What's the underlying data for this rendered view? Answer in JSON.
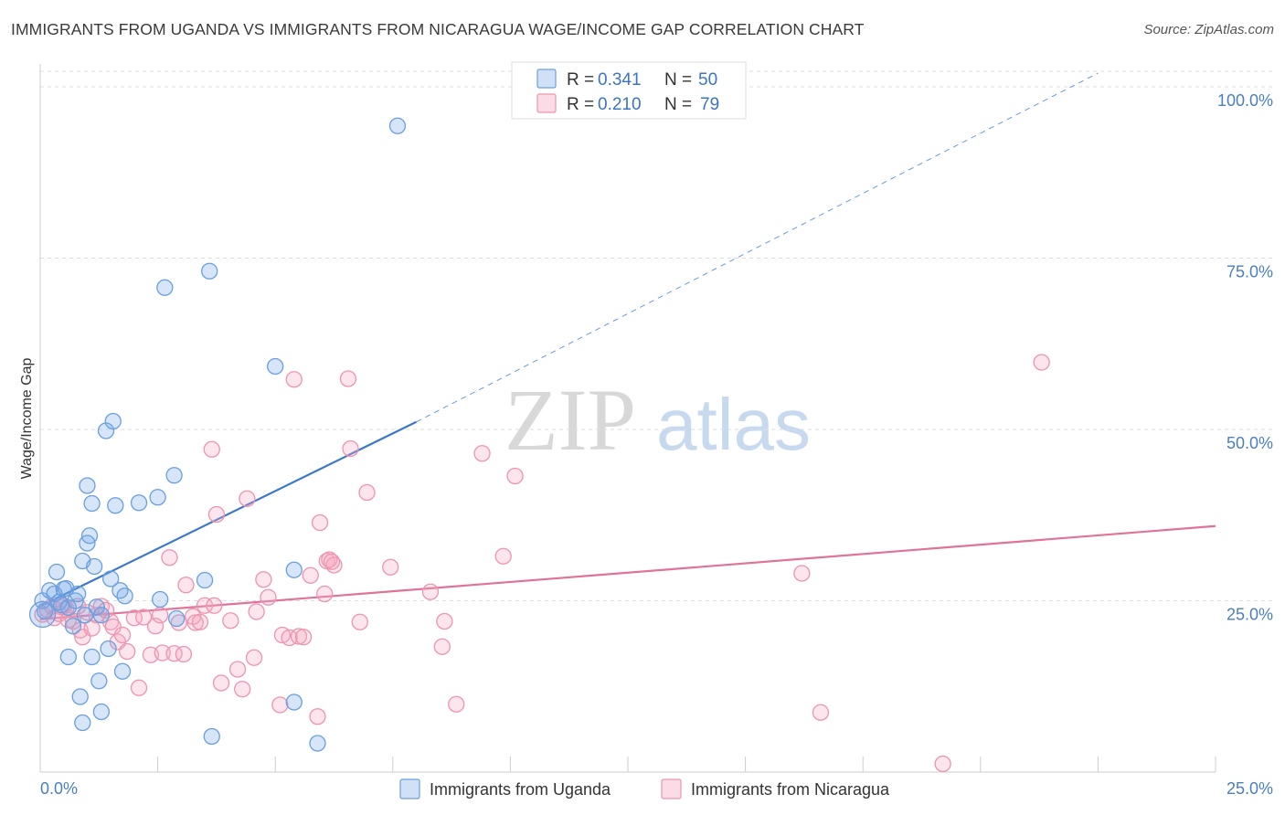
{
  "header": {
    "title": "IMMIGRANTS FROM UGANDA VS IMMIGRANTS FROM NICARAGUA WAGE/INCOME GAP CORRELATION CHART",
    "source": "Source: ZipAtlas.com"
  },
  "watermark": {
    "zip": "ZIP",
    "atlas": "atlas"
  },
  "colors": {
    "uganda": "#6a9fe0",
    "uganda_fill": "rgba(120,168,232,0.30)",
    "uganda_line": "#3a78cc",
    "nicaragua": "#ee94b0",
    "nicaragua_fill": "rgba(246,168,193,0.30)",
    "nicaragua_line": "#e0739a",
    "axis_text": "#4a7fc1",
    "grid": "#dddddd"
  },
  "chart_data": {
    "type": "scatter",
    "title": "IMMIGRANTS FROM UGANDA VS IMMIGRANTS FROM NICARAGUA WAGE/INCOME GAP CORRELATION CHART",
    "xlabel": "",
    "ylabel": "Wage/Income Gap",
    "xlim": [
      0,
      25
    ],
    "ylim": [
      0,
      102
    ],
    "x_tick_labels": [
      {
        "value": 0,
        "label": "0.0%"
      },
      {
        "value": 25,
        "label": "25.0%"
      }
    ],
    "x_minor_ticks": [
      0,
      2.5,
      5,
      7.5,
      10,
      12.5,
      15,
      17.5,
      20,
      22.5,
      25
    ],
    "y_ticks": [
      {
        "value": 25,
        "label": "25.0%"
      },
      {
        "value": 50,
        "label": "50.0%"
      },
      {
        "value": 75,
        "label": "75.0%"
      },
      {
        "value": 100,
        "label": "100.0%"
      }
    ],
    "legend": [
      {
        "series": "uganda",
        "r_label": "R =",
        "r_value": "0.341",
        "n_label": "N =",
        "n_value": "50"
      },
      {
        "series": "nicaragua",
        "r_label": "R =",
        "r_value": "0.210",
        "n_label": "N =",
        "n_value": "79"
      }
    ],
    "series": [
      {
        "name": "Immigrants from Uganda",
        "key": "uganda",
        "trend": {
          "x0": 0,
          "y0": 24.2,
          "x1": 8,
          "y1": 51.1,
          "dash_to_x": 22.5,
          "dash_to_y": 102
        },
        "points": [
          [
            0.05,
            25.0
          ],
          [
            0.1,
            23.5
          ],
          [
            0.2,
            26.5
          ],
          [
            0.3,
            26.0
          ],
          [
            0.35,
            29.2
          ],
          [
            0.4,
            24.8
          ],
          [
            0.45,
            24.4
          ],
          [
            0.5,
            26.7
          ],
          [
            0.55,
            26.8
          ],
          [
            0.6,
            24.0
          ],
          [
            0.7,
            21.3
          ],
          [
            0.6,
            16.8
          ],
          [
            0.9,
            30.8
          ],
          [
            0.75,
            25.0
          ],
          [
            0.8,
            26.0
          ],
          [
            0.95,
            22.9
          ],
          [
            0.85,
            11.0
          ],
          [
            0.9,
            7.2
          ],
          [
            1.0,
            41.8
          ],
          [
            1.05,
            34.5
          ],
          [
            1.1,
            39.2
          ],
          [
            1.15,
            30.0
          ],
          [
            1.1,
            16.8
          ],
          [
            1.2,
            24.1
          ],
          [
            1.25,
            13.3
          ],
          [
            1.3,
            8.8
          ],
          [
            1.4,
            49.8
          ],
          [
            1.45,
            18.0
          ],
          [
            1.5,
            28.2
          ],
          [
            1.55,
            51.2
          ],
          [
            1.6,
            38.9
          ],
          [
            1.7,
            26.5
          ],
          [
            1.75,
            14.7
          ],
          [
            1.8,
            25.7
          ],
          [
            1.0,
            33.4
          ],
          [
            2.1,
            39.3
          ],
          [
            2.5,
            40.1
          ],
          [
            2.55,
            25.2
          ],
          [
            2.65,
            70.7
          ],
          [
            2.85,
            43.3
          ],
          [
            2.9,
            22.4
          ],
          [
            3.5,
            28.0
          ],
          [
            3.6,
            73.1
          ],
          [
            3.65,
            5.2
          ],
          [
            5.0,
            59.2
          ],
          [
            5.4,
            29.5
          ],
          [
            5.4,
            10.2
          ],
          [
            5.9,
            4.2
          ],
          [
            7.6,
            94.3
          ],
          [
            1.3,
            22.9
          ]
        ]
      },
      {
        "name": "Immigrants from Nicaragua",
        "key": "nicaragua",
        "trend": {
          "x0": 0,
          "y0": 22.3,
          "x1": 25,
          "y1": 35.9
        },
        "points": [
          [
            0.05,
            23.0
          ],
          [
            0.15,
            23.7
          ],
          [
            0.25,
            24.2
          ],
          [
            0.3,
            22.5
          ],
          [
            0.4,
            23.1
          ],
          [
            0.45,
            24.1
          ],
          [
            0.5,
            24.3
          ],
          [
            0.55,
            23.8
          ],
          [
            0.6,
            22.2
          ],
          [
            0.7,
            22.0
          ],
          [
            0.8,
            24.2
          ],
          [
            0.85,
            20.7
          ],
          [
            0.9,
            19.7
          ],
          [
            1.0,
            23.3
          ],
          [
            1.1,
            21.0
          ],
          [
            1.2,
            22.9
          ],
          [
            1.3,
            24.2
          ],
          [
            1.4,
            23.6
          ],
          [
            1.5,
            21.9
          ],
          [
            1.55,
            21.2
          ],
          [
            1.65,
            19.0
          ],
          [
            1.75,
            20.0
          ],
          [
            1.85,
            17.6
          ],
          [
            2.0,
            22.5
          ],
          [
            2.1,
            12.3
          ],
          [
            2.2,
            22.6
          ],
          [
            2.35,
            17.1
          ],
          [
            2.45,
            21.3
          ],
          [
            2.55,
            22.9
          ],
          [
            2.6,
            17.4
          ],
          [
            2.75,
            31.3
          ],
          [
            2.85,
            17.3
          ],
          [
            2.95,
            21.8
          ],
          [
            3.05,
            17.2
          ],
          [
            3.1,
            27.3
          ],
          [
            3.25,
            22.7
          ],
          [
            3.3,
            21.8
          ],
          [
            3.4,
            21.9
          ],
          [
            3.5,
            24.3
          ],
          [
            3.65,
            47.1
          ],
          [
            3.7,
            24.3
          ],
          [
            3.75,
            37.6
          ],
          [
            3.85,
            13.0
          ],
          [
            4.05,
            22.1
          ],
          [
            4.2,
            15.0
          ],
          [
            4.3,
            12.1
          ],
          [
            4.4,
            39.9
          ],
          [
            4.55,
            16.7
          ],
          [
            4.6,
            23.4
          ],
          [
            4.75,
            28.1
          ],
          [
            4.85,
            25.5
          ],
          [
            5.1,
            9.8
          ],
          [
            5.15,
            20.0
          ],
          [
            5.3,
            19.6
          ],
          [
            5.4,
            57.3
          ],
          [
            5.5,
            19.8
          ],
          [
            5.6,
            19.7
          ],
          [
            5.75,
            28.7
          ],
          [
            5.9,
            8.1
          ],
          [
            5.95,
            36.4
          ],
          [
            6.05,
            26.0
          ],
          [
            6.1,
            30.8
          ],
          [
            6.15,
            31.0
          ],
          [
            6.25,
            30.2
          ],
          [
            6.2,
            30.7
          ],
          [
            6.55,
            57.4
          ],
          [
            6.6,
            47.2
          ],
          [
            6.8,
            21.9
          ],
          [
            6.95,
            40.8
          ],
          [
            7.45,
            29.9
          ],
          [
            8.3,
            26.3
          ],
          [
            8.55,
            18.3
          ],
          [
            8.6,
            22.0
          ],
          [
            8.85,
            9.9
          ],
          [
            9.4,
            46.5
          ],
          [
            9.85,
            31.5
          ],
          [
            10.1,
            43.2
          ],
          [
            16.2,
            29.0
          ],
          [
            16.6,
            8.7
          ]
        ],
        "extra_points": [
          [
            21.3,
            59.8
          ],
          [
            19.2,
            1.2
          ]
        ]
      }
    ]
  },
  "bottom_legend": {
    "uganda_label": "Immigrants from Uganda",
    "nicaragua_label": "Immigrants from Nicaragua"
  }
}
